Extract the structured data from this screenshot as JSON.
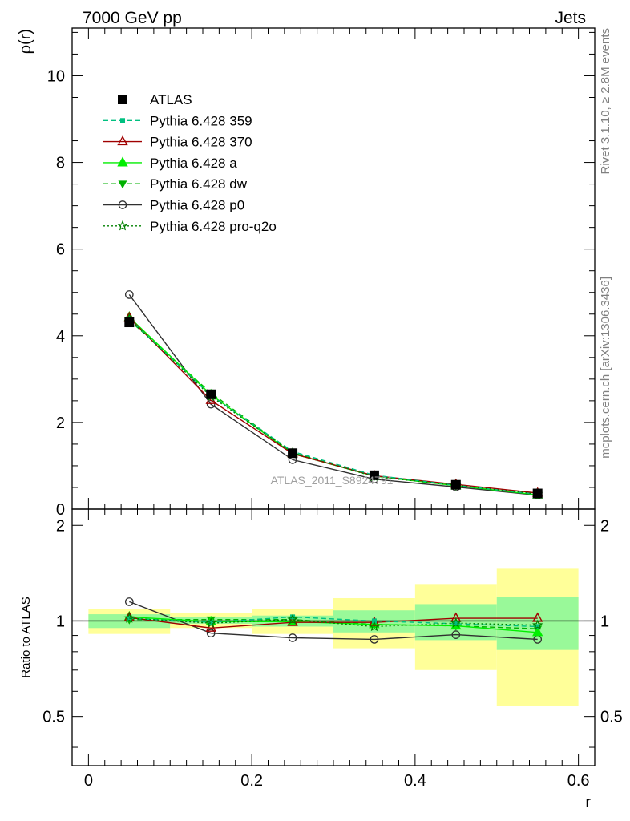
{
  "header": {
    "left": "7000 GeV pp",
    "right": "Jets"
  },
  "side_text": {
    "rivet": "Rivet 3.1.10, ≥ 2.8M events",
    "mcplots": "mcplots.cern.ch [arXiv:1306.3436]"
  },
  "watermark": "ATLAS_2011_S8924791",
  "chart_data": [
    {
      "type": "line",
      "panel": "main",
      "ylabel": "ρ(r)",
      "xlabel": "r",
      "xlim": [
        -0.02,
        0.62
      ],
      "ylim": [
        0,
        11.1
      ],
      "x_ticks": [
        "0",
        "0.2",
        "0.4",
        "0.6"
      ],
      "y_ticks": [
        "0",
        "2",
        "4",
        "6",
        "8",
        "10"
      ],
      "x": [
        0.05,
        0.15,
        0.25,
        0.35,
        0.45,
        0.55
      ],
      "legend_position": "top-left",
      "series": [
        {
          "name": "ATLAS",
          "color": "#000000",
          "marker": "square-filled",
          "line": "none",
          "values": [
            4.31,
            2.65,
            1.29,
            0.78,
            0.56,
            0.36
          ]
        },
        {
          "name": "Pythia 6.428 359",
          "color": "#00c080",
          "marker": "square-small",
          "line": "dashed",
          "values": [
            4.39,
            2.62,
            1.33,
            0.78,
            0.55,
            0.34
          ]
        },
        {
          "name": "Pythia 6.428 370",
          "color": "#a00000",
          "marker": "triangle-open",
          "line": "solid",
          "values": [
            4.42,
            2.51,
            1.28,
            0.77,
            0.57,
            0.37
          ]
        },
        {
          "name": "Pythia 6.428 a",
          "color": "#00ee00",
          "marker": "triangle-filled",
          "line": "solid",
          "values": [
            4.43,
            2.64,
            1.28,
            0.76,
            0.54,
            0.33
          ]
        },
        {
          "name": "Pythia 6.428 dw",
          "color": "#00b000",
          "marker": "triangle-down-filled",
          "line": "dashed",
          "values": [
            4.36,
            2.68,
            1.3,
            0.76,
            0.54,
            0.34
          ]
        },
        {
          "name": "Pythia 6.428 p0",
          "color": "#303030",
          "marker": "circle-open",
          "line": "solid",
          "values": [
            4.95,
            2.42,
            1.14,
            0.69,
            0.51,
            0.32
          ]
        },
        {
          "name": "Pythia 6.428 pro-q2o",
          "color": "#008000",
          "marker": "star-open",
          "line": "dotted",
          "values": [
            4.39,
            2.6,
            1.3,
            0.75,
            0.55,
            0.35
          ]
        }
      ]
    },
    {
      "type": "line",
      "panel": "ratio",
      "ylabel": "Ratio to ATLAS",
      "xlabel": "r",
      "xlim": [
        -0.02,
        0.62
      ],
      "ylim": [
        0.35,
        2.25
      ],
      "x_ticks": [
        "0",
        "0.2",
        "0.4",
        "0.6"
      ],
      "y_ticks": [
        "0.5",
        "1",
        "2"
      ],
      "bins": [
        [
          0.0,
          0.1
        ],
        [
          0.1,
          0.2
        ],
        [
          0.2,
          0.3
        ],
        [
          0.3,
          0.4
        ],
        [
          0.4,
          0.5
        ],
        [
          0.5,
          0.6
        ]
      ],
      "band_stat": [
        [
          0.95,
          1.05
        ],
        [
          0.98,
          1.03
        ],
        [
          0.96,
          1.04
        ],
        [
          0.92,
          1.08
        ],
        [
          0.87,
          1.13
        ],
        [
          0.81,
          1.19
        ]
      ],
      "band_total": [
        [
          0.91,
          1.09
        ],
        [
          0.95,
          1.06
        ],
        [
          0.91,
          1.09
        ],
        [
          0.82,
          1.18
        ],
        [
          0.7,
          1.3
        ],
        [
          0.54,
          1.46
        ]
      ],
      "band_colors": {
        "stat": "#99f999",
        "total": "#ffff99"
      },
      "x": [
        0.05,
        0.15,
        0.25,
        0.35,
        0.45,
        0.55
      ],
      "series": [
        {
          "name": "Pythia 6.428 359",
          "values": [
            1.02,
            0.99,
            1.03,
            1.0,
            0.98,
            0.96
          ]
        },
        {
          "name": "Pythia 6.428 370",
          "values": [
            1.025,
            0.95,
            0.99,
            0.99,
            1.02,
            1.02
          ]
        },
        {
          "name": "Pythia 6.428 a",
          "values": [
            1.03,
            0.995,
            0.995,
            0.975,
            0.965,
            0.92
          ]
        },
        {
          "name": "Pythia 6.428 dw",
          "values": [
            1.01,
            1.01,
            1.01,
            0.975,
            0.965,
            0.945
          ]
        },
        {
          "name": "Pythia 6.428 p0",
          "values": [
            1.15,
            0.915,
            0.885,
            0.875,
            0.905,
            0.875
          ]
        },
        {
          "name": "Pythia 6.428 pro-q2o",
          "values": [
            1.02,
            0.985,
            1.01,
            0.96,
            0.985,
            0.97
          ]
        }
      ]
    }
  ]
}
